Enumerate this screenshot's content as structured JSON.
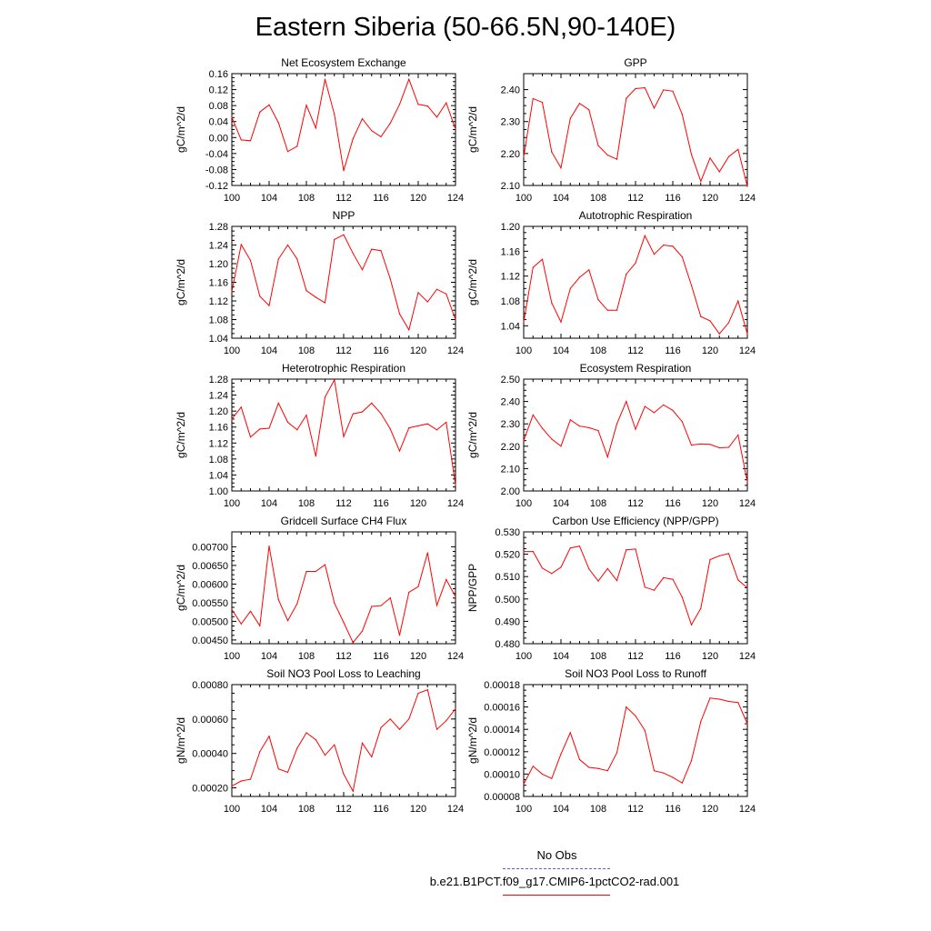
{
  "title": "Eastern Siberia (50-66.5N,90-140E)",
  "line_color": "#ff0000",
  "obs_color": "#6a5acd",
  "legend": {
    "obs_label": "No Obs",
    "model_label": "b.e21.B1PCT.f09_g17.CMIP6-1pctCO2-rad.001"
  },
  "chart_data": [
    {
      "type": "line",
      "title": "Net Ecosystem Exchange",
      "ylabel": "gC/m^2/d",
      "xlabel": "",
      "ylim": [
        -0.12,
        0.16
      ],
      "xlim": [
        100,
        124
      ],
      "yticks": [
        "-0.12",
        "-0.08",
        "-0.04",
        "0.00",
        "0.04",
        "0.08",
        "0.12",
        "0.16"
      ],
      "xticks": [
        "100",
        "104",
        "108",
        "112",
        "116",
        "120",
        "124"
      ],
      "x": [
        100,
        101,
        102,
        103,
        104,
        105,
        106,
        107,
        108,
        109,
        110,
        111,
        112,
        113,
        114,
        115,
        116,
        117,
        118,
        119,
        120,
        121,
        122,
        123,
        124
      ],
      "series": [
        {
          "values": [
            0.051,
            -0.006,
            -0.008,
            0.064,
            0.082,
            0.037,
            -0.035,
            -0.022,
            0.081,
            0.024,
            0.146,
            0.058,
            -0.083,
            -0.003,
            0.047,
            0.017,
            0.002,
            0.036,
            0.083,
            0.146,
            0.083,
            0.079,
            0.051,
            0.087,
            0.021
          ]
        }
      ]
    },
    {
      "type": "line",
      "title": "GPP",
      "ylabel": "gC/m^2/d",
      "xlabel": "",
      "ylim": [
        2.1,
        2.45
      ],
      "xlim": [
        100,
        124
      ],
      "yticks": [
        "2.10",
        "2.20",
        "2.30",
        "2.40"
      ],
      "xticks": [
        "100",
        "104",
        "108",
        "112",
        "116",
        "120",
        "124"
      ],
      "x": [
        100,
        101,
        102,
        103,
        104,
        105,
        106,
        107,
        108,
        109,
        110,
        111,
        112,
        113,
        114,
        115,
        116,
        117,
        118,
        119,
        120,
        121,
        122,
        123,
        124
      ],
      "series": [
        {
          "values": [
            2.19,
            2.372,
            2.36,
            2.205,
            2.155,
            2.31,
            2.357,
            2.337,
            2.225,
            2.195,
            2.182,
            2.373,
            2.403,
            2.406,
            2.342,
            2.399,
            2.395,
            2.323,
            2.197,
            2.113,
            2.186,
            2.143,
            2.19,
            2.213,
            2.097
          ]
        }
      ]
    },
    {
      "type": "line",
      "title": "NPP",
      "ylabel": "gC/m^2/d",
      "xlabel": "",
      "ylim": [
        1.04,
        1.28
      ],
      "xlim": [
        100,
        124
      ],
      "yticks": [
        "1.04",
        "1.08",
        "1.12",
        "1.16",
        "1.20",
        "1.24",
        "1.28"
      ],
      "xticks": [
        "100",
        "104",
        "108",
        "112",
        "116",
        "120",
        "124"
      ],
      "x": [
        100,
        101,
        102,
        103,
        104,
        105,
        106,
        107,
        108,
        109,
        110,
        111,
        112,
        113,
        114,
        115,
        116,
        117,
        118,
        119,
        120,
        121,
        122,
        123,
        124
      ],
      "series": [
        {
          "values": [
            1.14,
            1.241,
            1.207,
            1.13,
            1.11,
            1.21,
            1.24,
            1.21,
            1.142,
            1.128,
            1.116,
            1.252,
            1.262,
            1.222,
            1.187,
            1.231,
            1.228,
            1.167,
            1.092,
            1.058,
            1.138,
            1.118,
            1.145,
            1.135,
            1.08
          ]
        }
      ]
    },
    {
      "type": "line",
      "title": "Autotrophic Respiration",
      "ylabel": "gC/m^2/d",
      "xlabel": "",
      "ylim": [
        1.02,
        1.2
      ],
      "xlim": [
        100,
        124
      ],
      "yticks": [
        "1.04",
        "1.08",
        "1.12",
        "1.16",
        "1.20"
      ],
      "xticks": [
        "100",
        "104",
        "108",
        "112",
        "116",
        "120",
        "124"
      ],
      "x": [
        100,
        101,
        102,
        103,
        104,
        105,
        106,
        107,
        108,
        109,
        110,
        111,
        112,
        113,
        114,
        115,
        116,
        117,
        118,
        119,
        120,
        121,
        122,
        123,
        124
      ],
      "series": [
        {
          "values": [
            1.046,
            1.134,
            1.147,
            1.077,
            1.046,
            1.1,
            1.118,
            1.13,
            1.082,
            1.065,
            1.065,
            1.123,
            1.141,
            1.185,
            1.155,
            1.17,
            1.168,
            1.151,
            1.105,
            1.055,
            1.048,
            1.027,
            1.045,
            1.08,
            1.027
          ]
        }
      ]
    },
    {
      "type": "line",
      "title": "Heterotrophic Respiration",
      "ylabel": "gC/m^2/d",
      "xlabel": "",
      "ylim": [
        1.0,
        1.28
      ],
      "xlim": [
        100,
        124
      ],
      "yticks": [
        "1.00",
        "1.04",
        "1.08",
        "1.12",
        "1.16",
        "1.20",
        "1.24",
        "1.28"
      ],
      "xticks": [
        "100",
        "104",
        "108",
        "112",
        "116",
        "120",
        "124"
      ],
      "x": [
        100,
        101,
        102,
        103,
        104,
        105,
        106,
        107,
        108,
        109,
        110,
        111,
        112,
        113,
        114,
        115,
        116,
        117,
        118,
        119,
        120,
        121,
        122,
        123,
        124
      ],
      "series": [
        {
          "values": [
            1.18,
            1.21,
            1.135,
            1.155,
            1.157,
            1.22,
            1.172,
            1.153,
            1.19,
            1.087,
            1.235,
            1.278,
            1.136,
            1.193,
            1.198,
            1.22,
            1.194,
            1.155,
            1.1,
            1.158,
            1.163,
            1.168,
            1.153,
            1.172,
            1.015
          ]
        }
      ]
    },
    {
      "type": "line",
      "title": "Ecosystem Respiration",
      "ylabel": "gC/m^2/d",
      "xlabel": "",
      "ylim": [
        2.0,
        2.5
      ],
      "xlim": [
        100,
        124
      ],
      "yticks": [
        "2.00",
        "2.10",
        "2.20",
        "2.30",
        "2.40",
        "2.50"
      ],
      "xticks": [
        "100",
        "104",
        "108",
        "112",
        "116",
        "120",
        "124"
      ],
      "x": [
        100,
        101,
        102,
        103,
        104,
        105,
        106,
        107,
        108,
        109,
        110,
        111,
        112,
        113,
        114,
        115,
        116,
        117,
        118,
        119,
        120,
        121,
        122,
        123,
        124
      ],
      "series": [
        {
          "values": [
            2.225,
            2.34,
            2.28,
            2.232,
            2.2,
            2.318,
            2.29,
            2.283,
            2.27,
            2.152,
            2.3,
            2.4,
            2.276,
            2.378,
            2.35,
            2.385,
            2.36,
            2.31,
            2.205,
            2.21,
            2.208,
            2.193,
            2.195,
            2.25,
            2.04
          ]
        }
      ]
    },
    {
      "type": "line",
      "title": "Gridcell Surface CH4 Flux",
      "ylabel": "gC/m^2/d",
      "xlabel": "",
      "ylim": [
        0.0044,
        0.0074
      ],
      "xlim": [
        100,
        124
      ],
      "yticks": [
        "0.00450",
        "0.00500",
        "0.00550",
        "0.00600",
        "0.00650",
        "0.00700"
      ],
      "xticks": [
        "100",
        "104",
        "108",
        "112",
        "116",
        "120",
        "124"
      ],
      "x": [
        100,
        101,
        102,
        103,
        104,
        105,
        106,
        107,
        108,
        109,
        110,
        111,
        112,
        113,
        114,
        115,
        116,
        117,
        118,
        119,
        120,
        121,
        122,
        123,
        124
      ],
      "series": [
        {
          "values": [
            0.00532,
            0.00493,
            0.00527,
            0.00488,
            0.00702,
            0.00558,
            0.00502,
            0.00547,
            0.00634,
            0.00634,
            0.00652,
            0.00549,
            0.00497,
            0.00443,
            0.00474,
            0.0054,
            0.00542,
            0.00563,
            0.00463,
            0.00578,
            0.00593,
            0.00684,
            0.00543,
            0.00612,
            0.00566
          ]
        }
      ]
    },
    {
      "type": "line",
      "title": "Carbon Use Efficiency (NPP/GPP)",
      "ylabel": "NPP/GPP",
      "xlabel": "",
      "ylim": [
        0.48,
        0.53
      ],
      "xlim": [
        100,
        124
      ],
      "yticks": [
        "0.480",
        "0.490",
        "0.500",
        "0.510",
        "0.520",
        "0.530"
      ],
      "xticks": [
        "100",
        "104",
        "108",
        "112",
        "116",
        "120",
        "124"
      ],
      "x": [
        100,
        101,
        102,
        103,
        104,
        105,
        106,
        107,
        108,
        109,
        110,
        111,
        112,
        113,
        114,
        115,
        116,
        117,
        118,
        119,
        120,
        121,
        122,
        123,
        124
      ],
      "series": [
        {
          "values": [
            0.5212,
            0.5212,
            0.5138,
            0.5114,
            0.5142,
            0.5228,
            0.5236,
            0.5134,
            0.508,
            0.5136,
            0.5082,
            0.522,
            0.5223,
            0.5053,
            0.5039,
            0.5095,
            0.5088,
            0.5008,
            0.4884,
            0.4958,
            0.5176,
            0.5193,
            0.5203,
            0.5085,
            0.505
          ]
        }
      ]
    },
    {
      "type": "line",
      "title": "Soil NO3 Pool Loss to Leaching",
      "ylabel": "gN/m^2/d",
      "xlabel": "",
      "ylim": [
        0.00015,
        0.0008
      ],
      "xlim": [
        100,
        124
      ],
      "yticks": [
        "0.00020",
        "0.00040",
        "0.00060",
        "0.00080"
      ],
      "xticks": [
        "100",
        "104",
        "108",
        "112",
        "116",
        "120",
        "124"
      ],
      "x": [
        100,
        101,
        102,
        103,
        104,
        105,
        106,
        107,
        108,
        109,
        110,
        111,
        112,
        113,
        114,
        115,
        116,
        117,
        118,
        119,
        120,
        121,
        122,
        123,
        124
      ],
      "series": [
        {
          "values": [
            0.00021,
            0.00024,
            0.00025,
            0.00041,
            0.0005,
            0.00031,
            0.00029,
            0.00043,
            0.00052,
            0.00048,
            0.00039,
            0.00045,
            0.00028,
            0.00018,
            0.00046,
            0.00038,
            0.00055,
            0.0006,
            0.00054,
            0.0006,
            0.00075,
            0.00077,
            0.00054,
            0.00059,
            0.00066
          ]
        }
      ]
    },
    {
      "type": "line",
      "title": "Soil NO3 Pool Loss to Runoff",
      "ylabel": "gN/m^2/d",
      "xlabel": "",
      "ylim": [
        8e-05,
        0.00018
      ],
      "xlim": [
        100,
        124
      ],
      "yticks": [
        "0.00008",
        "0.00010",
        "0.00012",
        "0.00014",
        "0.00016",
        "0.00018"
      ],
      "xticks": [
        "100",
        "104",
        "108",
        "112",
        "116",
        "120",
        "124"
      ],
      "x": [
        100,
        101,
        102,
        103,
        104,
        105,
        106,
        107,
        108,
        109,
        110,
        111,
        112,
        113,
        114,
        115,
        116,
        117,
        118,
        119,
        120,
        121,
        122,
        123,
        124
      ],
      "series": [
        {
          "values": [
            9.1e-05,
            0.000107,
            0.0001,
            9.6e-05,
            0.000118,
            0.000137,
            0.000113,
            0.000106,
            0.000105,
            0.000103,
            0.000119,
            0.00016,
            0.000152,
            0.000139,
            0.000103,
            0.000101,
            9.7e-05,
            9.2e-05,
            0.000112,
            0.000147,
            0.000168,
            0.000167,
            0.000165,
            0.000164,
            0.000145
          ]
        }
      ]
    }
  ]
}
